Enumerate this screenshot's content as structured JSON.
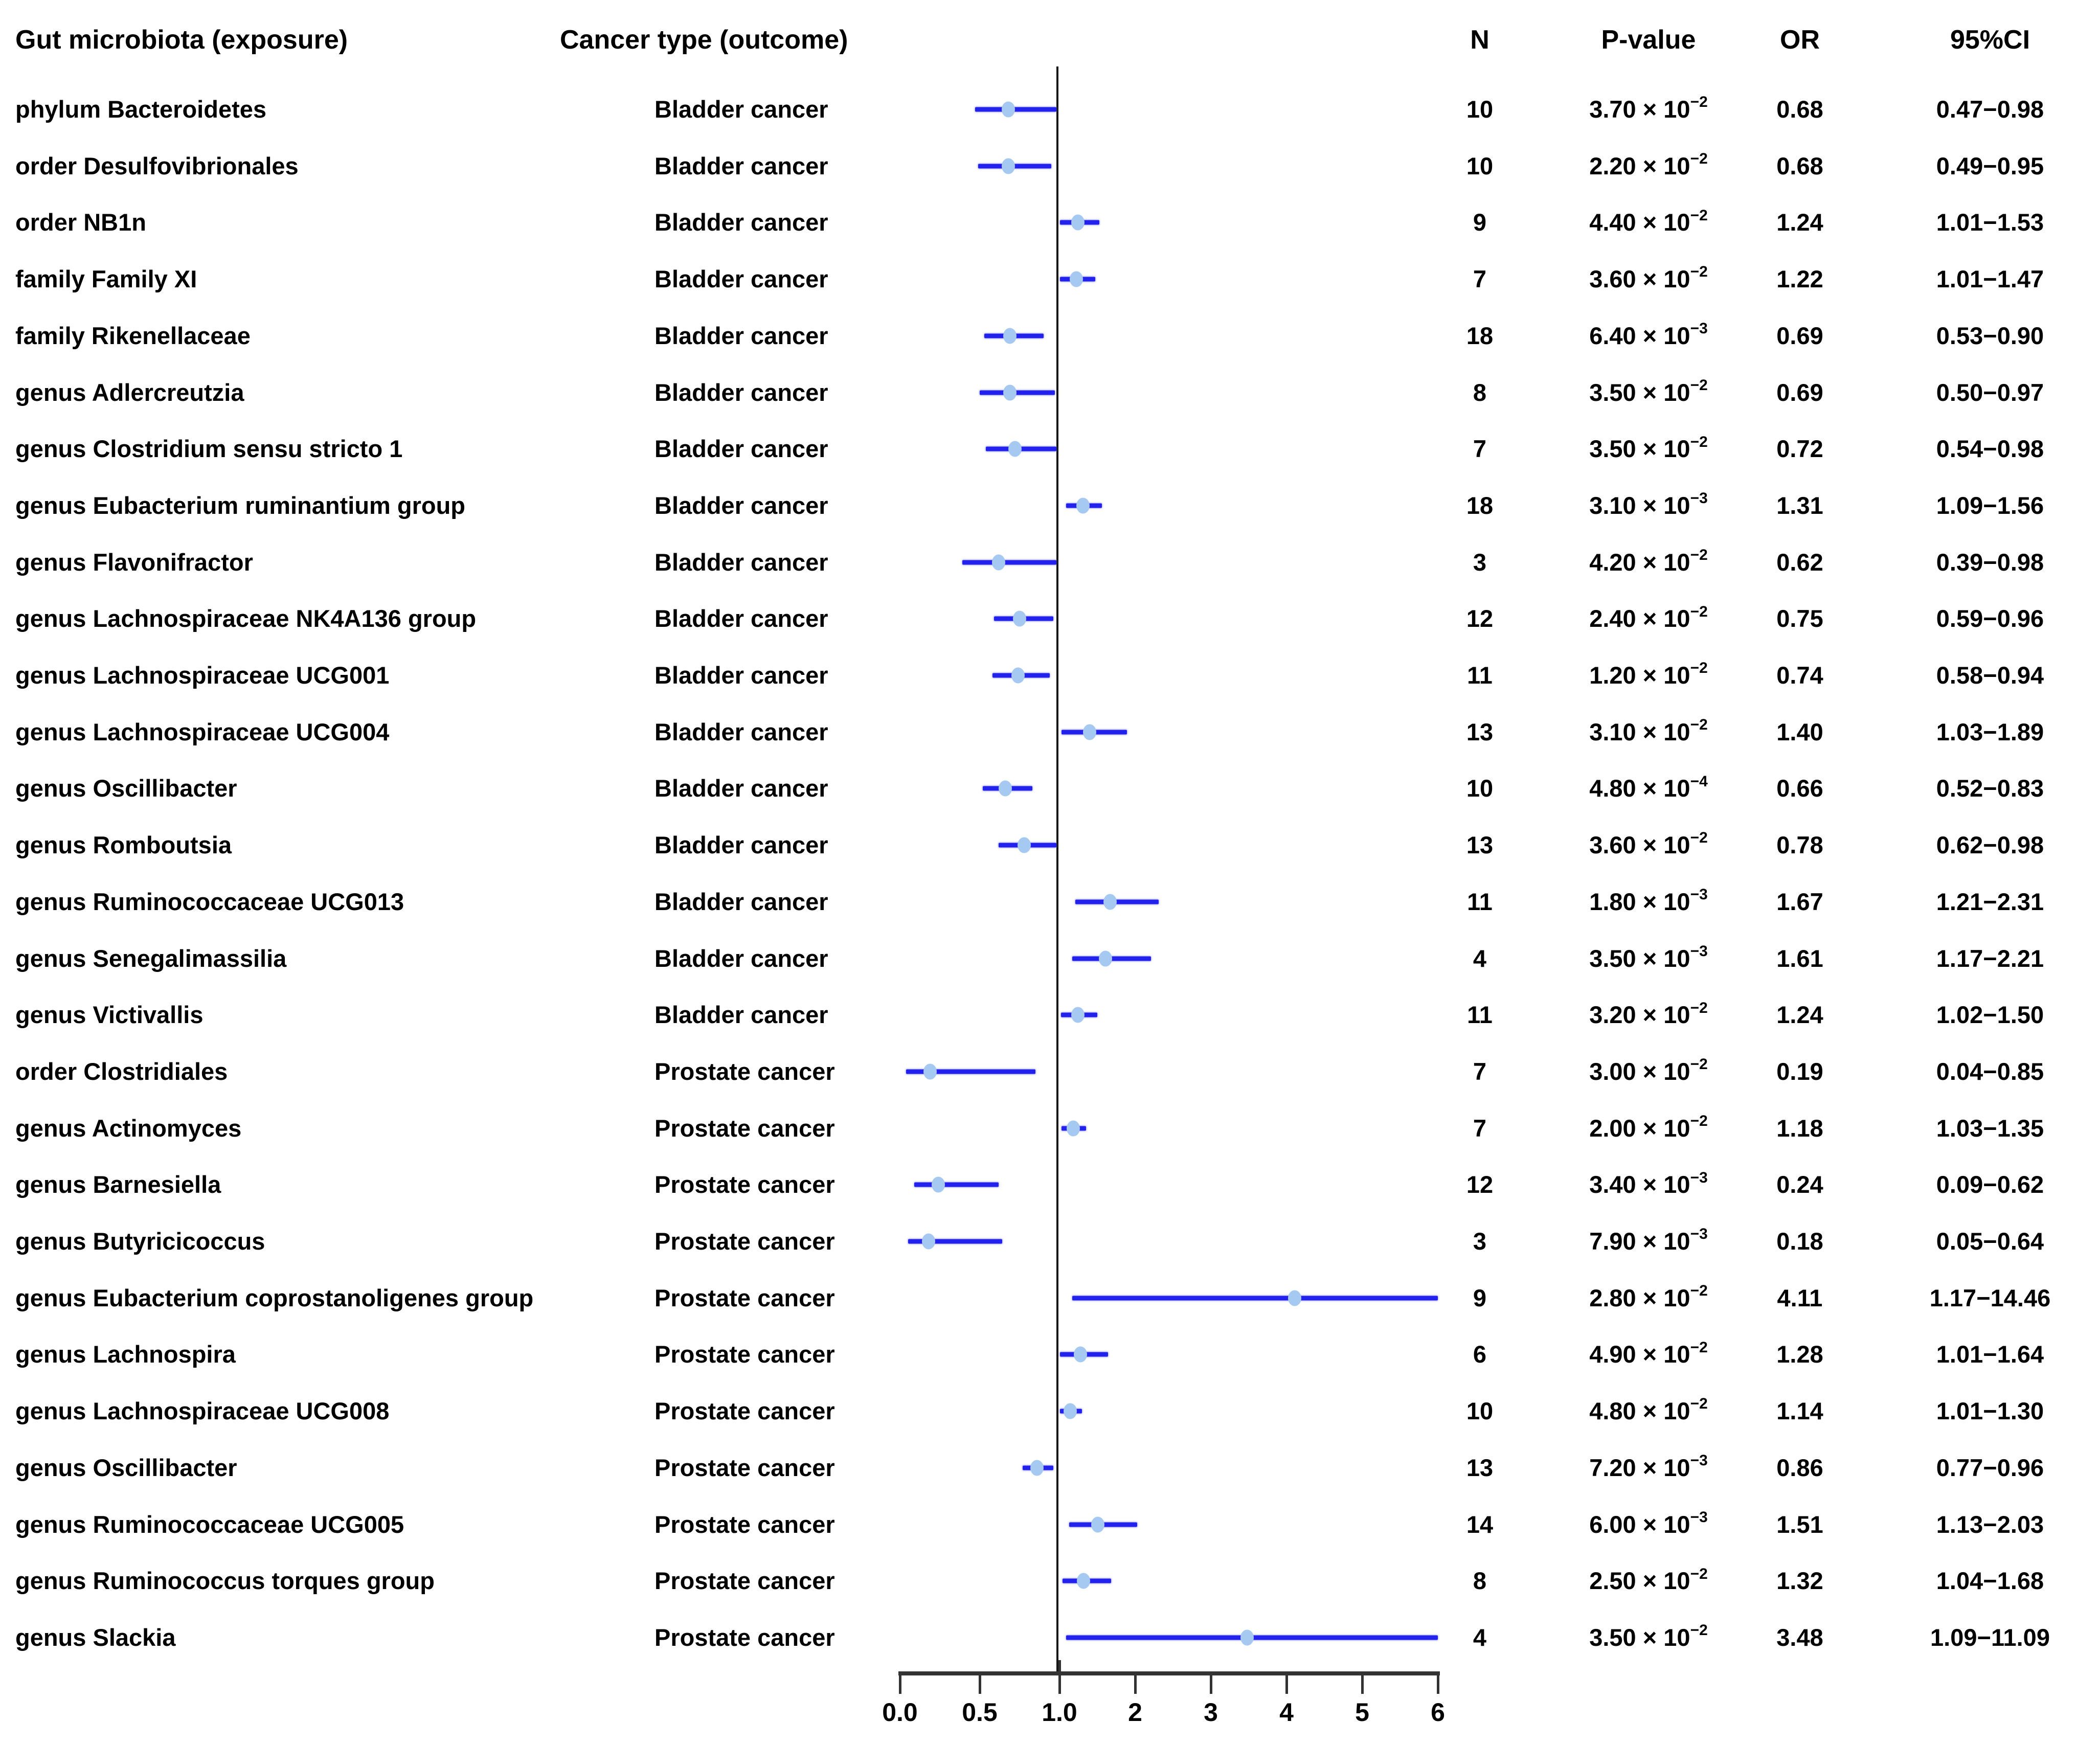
{
  "chart_data": {
    "type": "forest",
    "title": "",
    "header": {
      "exposure": "Gut microbiota (exposure)",
      "outcome": "Cancer type (outcome)",
      "n": "N",
      "p_value": "P-value",
      "or": "OR",
      "ci": "95%CI"
    },
    "x_axis": {
      "tick_labels": [
        "0.0",
        "0.5",
        "1.0",
        "2",
        "3",
        "4",
        "5",
        "6"
      ],
      "tick_values": [
        0,
        0.5,
        1,
        2,
        3,
        4,
        5,
        6
      ],
      "reference_value": 1.0,
      "range": [
        0,
        6
      ],
      "grid": false,
      "scale_note": "piecewise linear: 0 to 1 spans two tick intervals, 1 to 6 one interval per unit; CIs wider than 6 are clipped at axis end"
    },
    "rows": [
      {
        "exposure": "phylum Bacteroidetes",
        "outcome": "Bladder cancer",
        "n": 10,
        "p_mantissa": "3.70",
        "p_exponent": "−2",
        "or": 0.68,
        "ci_low": 0.47,
        "ci_high": 0.98
      },
      {
        "exposure": "order Desulfovibrionales",
        "outcome": "Bladder cancer",
        "n": 10,
        "p_mantissa": "2.20",
        "p_exponent": "−2",
        "or": 0.68,
        "ci_low": 0.49,
        "ci_high": 0.95
      },
      {
        "exposure": "order NB1n",
        "outcome": "Bladder cancer",
        "n": 9,
        "p_mantissa": "4.40",
        "p_exponent": "−2",
        "or": 1.24,
        "ci_low": 1.01,
        "ci_high": 1.53
      },
      {
        "exposure": "family Family XI",
        "outcome": "Bladder cancer",
        "n": 7,
        "p_mantissa": "3.60",
        "p_exponent": "−2",
        "or": 1.22,
        "ci_low": 1.01,
        "ci_high": 1.47
      },
      {
        "exposure": "family Rikenellaceae",
        "outcome": "Bladder cancer",
        "n": 18,
        "p_mantissa": "6.40",
        "p_exponent": "−3",
        "or": 0.69,
        "ci_low": 0.53,
        "ci_high": 0.9
      },
      {
        "exposure": "genus Adlercreutzia",
        "outcome": "Bladder cancer",
        "n": 8,
        "p_mantissa": "3.50",
        "p_exponent": "−2",
        "or": 0.69,
        "ci_low": 0.5,
        "ci_high": 0.97
      },
      {
        "exposure": "genus Clostridium sensu stricto 1",
        "outcome": "Bladder cancer",
        "n": 7,
        "p_mantissa": "3.50",
        "p_exponent": "−2",
        "or": 0.72,
        "ci_low": 0.54,
        "ci_high": 0.98
      },
      {
        "exposure": "genus Eubacterium ruminantium group",
        "outcome": "Bladder cancer",
        "n": 18,
        "p_mantissa": "3.10",
        "p_exponent": "−3",
        "or": 1.31,
        "ci_low": 1.09,
        "ci_high": 1.56
      },
      {
        "exposure": "genus Flavonifractor",
        "outcome": "Bladder cancer",
        "n": 3,
        "p_mantissa": "4.20",
        "p_exponent": "−2",
        "or": 0.62,
        "ci_low": 0.39,
        "ci_high": 0.98
      },
      {
        "exposure": "genus Lachnospiraceae NK4A136 group",
        "outcome": "Bladder cancer",
        "n": 12,
        "p_mantissa": "2.40",
        "p_exponent": "−2",
        "or": 0.75,
        "ci_low": 0.59,
        "ci_high": 0.96
      },
      {
        "exposure": "genus Lachnospiraceae UCG001",
        "outcome": "Bladder cancer",
        "n": 11,
        "p_mantissa": "1.20",
        "p_exponent": "−2",
        "or": 0.74,
        "ci_low": 0.58,
        "ci_high": 0.94
      },
      {
        "exposure": "genus Lachnospiraceae UCG004",
        "outcome": "Bladder cancer",
        "n": 13,
        "p_mantissa": "3.10",
        "p_exponent": "−2",
        "or": 1.4,
        "ci_low": 1.03,
        "ci_high": 1.89
      },
      {
        "exposure": "genus Oscillibacter",
        "outcome": "Bladder cancer",
        "n": 10,
        "p_mantissa": "4.80",
        "p_exponent": "−4",
        "or": 0.66,
        "ci_low": 0.52,
        "ci_high": 0.83
      },
      {
        "exposure": "genus Romboutsia",
        "outcome": "Bladder cancer",
        "n": 13,
        "p_mantissa": "3.60",
        "p_exponent": "−2",
        "or": 0.78,
        "ci_low": 0.62,
        "ci_high": 0.98
      },
      {
        "exposure": "genus Ruminococcaceae UCG013",
        "outcome": "Bladder cancer",
        "n": 11,
        "p_mantissa": "1.80",
        "p_exponent": "−3",
        "or": 1.67,
        "ci_low": 1.21,
        "ci_high": 2.31
      },
      {
        "exposure": "genus Senegalimassilia",
        "outcome": "Bladder cancer",
        "n": 4,
        "p_mantissa": "3.50",
        "p_exponent": "−3",
        "or": 1.61,
        "ci_low": 1.17,
        "ci_high": 2.21
      },
      {
        "exposure": "genus Victivallis",
        "outcome": "Bladder cancer",
        "n": 11,
        "p_mantissa": "3.20",
        "p_exponent": "−2",
        "or": 1.24,
        "ci_low": 1.02,
        "ci_high": 1.5
      },
      {
        "exposure": "order Clostridiales",
        "outcome": "Prostate cancer",
        "n": 7,
        "p_mantissa": "3.00",
        "p_exponent": "−2",
        "or": 0.19,
        "ci_low": 0.04,
        "ci_high": 0.85
      },
      {
        "exposure": "genus Actinomyces",
        "outcome": "Prostate cancer",
        "n": 7,
        "p_mantissa": "2.00",
        "p_exponent": "−2",
        "or": 1.18,
        "ci_low": 1.03,
        "ci_high": 1.35
      },
      {
        "exposure": "genus Barnesiella",
        "outcome": "Prostate cancer",
        "n": 12,
        "p_mantissa": "3.40",
        "p_exponent": "−3",
        "or": 0.24,
        "ci_low": 0.09,
        "ci_high": 0.62
      },
      {
        "exposure": "genus Butyricicoccus",
        "outcome": "Prostate cancer",
        "n": 3,
        "p_mantissa": "7.90",
        "p_exponent": "−3",
        "or": 0.18,
        "ci_low": 0.05,
        "ci_high": 0.64
      },
      {
        "exposure": "genus Eubacterium coprostanoligenes group",
        "outcome": "Prostate cancer",
        "n": 9,
        "p_mantissa": "2.80",
        "p_exponent": "−2",
        "or": 4.11,
        "ci_low": 1.17,
        "ci_high": 14.46
      },
      {
        "exposure": "genus Lachnospira",
        "outcome": "Prostate cancer",
        "n": 6,
        "p_mantissa": "4.90",
        "p_exponent": "−2",
        "or": 1.28,
        "ci_low": 1.01,
        "ci_high": 1.64
      },
      {
        "exposure": "genus Lachnospiraceae UCG008",
        "outcome": "Prostate cancer",
        "n": 10,
        "p_mantissa": "4.80",
        "p_exponent": "−2",
        "or": 1.14,
        "ci_low": 1.01,
        "ci_high": 1.3
      },
      {
        "exposure": "genus Oscillibacter",
        "outcome": "Prostate cancer",
        "n": 13,
        "p_mantissa": "7.20",
        "p_exponent": "−3",
        "or": 0.86,
        "ci_low": 0.77,
        "ci_high": 0.96
      },
      {
        "exposure": "genus Ruminococcaceae UCG005",
        "outcome": "Prostate cancer",
        "n": 14,
        "p_mantissa": "6.00",
        "p_exponent": "−3",
        "or": 1.51,
        "ci_low": 1.13,
        "ci_high": 2.03
      },
      {
        "exposure": "genus Ruminococcus torques group",
        "outcome": "Prostate cancer",
        "n": 8,
        "p_mantissa": "2.50",
        "p_exponent": "−2",
        "or": 1.32,
        "ci_low": 1.04,
        "ci_high": 1.68
      },
      {
        "exposure": "genus Slackia",
        "outcome": "Prostate cancer",
        "n": 4,
        "p_mantissa": "3.50",
        "p_exponent": "−2",
        "or": 3.48,
        "ci_low": 1.09,
        "ci_high": 11.09
      }
    ]
  },
  "format": {
    "p_times": " × 10",
    "ci_separator": "−"
  },
  "colors": {
    "ci_line": "#2222ec",
    "marker_fill": "#a6c9f1",
    "reference_line": "#161616",
    "axis_line": "#333333",
    "text": "#000000"
  }
}
